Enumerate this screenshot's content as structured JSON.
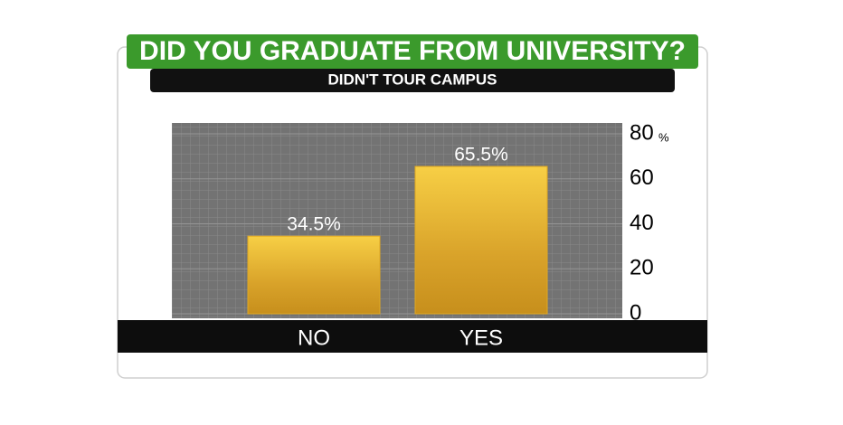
{
  "chart_data": {
    "type": "bar",
    "title": "DID YOU GRADUATE FROM UNIVERSITY?",
    "subtitle": "DIDN'T TOUR CAMPUS",
    "categories": [
      "NO",
      "YES"
    ],
    "values": [
      34.5,
      65.5
    ],
    "value_labels": [
      "34.5%",
      "65.5%"
    ],
    "color": "#e0a820",
    "ylim": [
      0,
      80
    ],
    "yticks": [
      0,
      20,
      40,
      60,
      80
    ],
    "y_unit": "%",
    "grid": true
  }
}
